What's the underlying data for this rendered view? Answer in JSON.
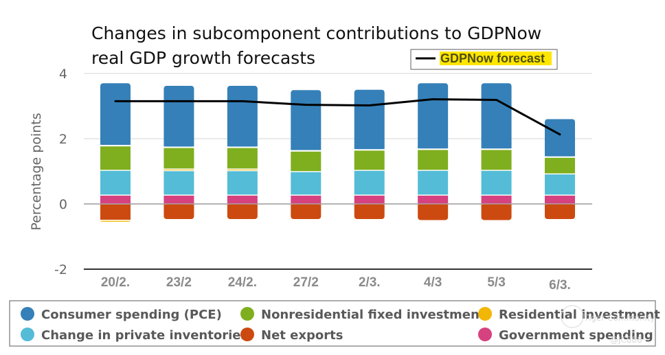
{
  "chart_data": {
    "type": "bar",
    "stacked": true,
    "title_lines": [
      "Changes in subcomponent contributions to GDPNow",
      "real GDP growth forecasts"
    ],
    "ylabel": "Percentage points",
    "xlabel": "",
    "ylim": [
      -2,
      4
    ],
    "yticks": [
      4,
      2,
      0,
      -2
    ],
    "ytick_labels": [
      "4",
      "2",
      "0",
      "-2"
    ],
    "grid": true,
    "categories": [
      "20/2",
      "23/2",
      "24/2",
      "27/2",
      "2/3",
      "4/3",
      "5/3",
      "6/3"
    ],
    "category_labels": [
      "20/2.",
      "23/2",
      "24/2.",
      "27/2",
      "2/3.",
      "4/3",
      "5/3",
      "6/3."
    ],
    "series": [
      {
        "key": "gov",
        "name": "Government spending",
        "color": "#d6417f",
        "values": [
          0.27,
          0.27,
          0.27,
          0.27,
          0.27,
          0.27,
          0.27,
          0.27
        ]
      },
      {
        "key": "inv",
        "name": "Change in private inventories",
        "color": "#54bcd6",
        "values": [
          0.76,
          0.75,
          0.75,
          0.72,
          0.76,
          0.76,
          0.76,
          0.65
        ]
      },
      {
        "key": "res",
        "name": "Residential investment",
        "color": "#f2b705",
        "values": [
          -0.06,
          0.05,
          0.05,
          0.0,
          0.0,
          0.0,
          0.0,
          0.0
        ]
      },
      {
        "key": "nonres",
        "name": "Nonresidential fixed investment",
        "color": "#7faf1f",
        "values": [
          0.75,
          0.66,
          0.66,
          0.63,
          0.62,
          0.64,
          0.64,
          0.51
        ]
      },
      {
        "key": "pce",
        "name": "Consumer spending (PCE)",
        "color": "#3580b8",
        "values": [
          1.92,
          1.89,
          1.89,
          1.87,
          1.85,
          2.03,
          2.03,
          1.17
        ]
      },
      {
        "key": "netexp",
        "name": "Net exports",
        "color": "#cc4a10",
        "values": [
          -0.5,
          -0.48,
          -0.48,
          -0.48,
          -0.48,
          -0.51,
          -0.51,
          -0.48
        ]
      }
    ],
    "line": {
      "name": "GDPNow forecast",
      "color": "#000000",
      "values": [
        3.15,
        3.15,
        3.15,
        3.04,
        3.02,
        3.21,
        3.19,
        2.13
      ]
    },
    "legend": {
      "placement": "bottom",
      "rows": [
        [
          "Consumer spending (PCE)",
          "Nonresidential fixed investment",
          "Residential investment"
        ],
        [
          "Change in private inventories",
          "Net exports",
          "Government spending"
        ]
      ],
      "colors": [
        [
          "#3580b8",
          "#7faf1f",
          "#f2b705"
        ],
        [
          "#54bcd6",
          "#cc4a10",
          "#d6417f"
        ]
      ]
    },
    "line_legend": {
      "placement": "top-right",
      "label": "GDPNow forecast",
      "highlight": "#ffe600"
    }
  },
  "watermark": {
    "brand": "Tiger Community",
    "handle": "@JC888"
  }
}
